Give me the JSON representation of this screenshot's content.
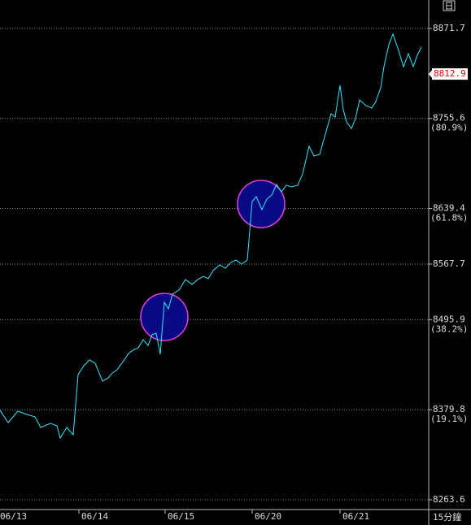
{
  "chart_data": {
    "type": "line",
    "interval_label": "15分鐘",
    "corner_label": "日",
    "xlim": [
      0,
      527
    ],
    "ylim": [
      8251.0,
      8908.4
    ],
    "xticks": [
      {
        "value": -3,
        "label": "06/13"
      },
      {
        "value": 97,
        "label": "06/14"
      },
      {
        "value": 203,
        "label": "06/15"
      },
      {
        "value": 310,
        "label": "06/20"
      },
      {
        "value": 418,
        "label": "06/21"
      }
    ],
    "yticks": [
      8871.7,
      8755.6,
      8639.4,
      8567.7,
      8495.9,
      8379.8,
      8263.6
    ],
    "fib_levels": [
      {
        "value": 8755.6,
        "label": "(80.9%)"
      },
      {
        "value": 8639.4,
        "label": "(61.8%)"
      },
      {
        "value": 8495.9,
        "label": "(38.2%)"
      },
      {
        "value": 8379.8,
        "label": "(19.1%)"
      }
    ],
    "last_price": 8812.9,
    "grid": true,
    "series": [
      {
        "color": "#33e6ff",
        "x": [
          0,
          10,
          22,
          33,
          43,
          50,
          62,
          70,
          74,
          82,
          90,
          96,
          103,
          110,
          117,
          126,
          133,
          138,
          144,
          152,
          158,
          165,
          170,
          176,
          182,
          187,
          192,
          197,
          202,
          207,
          212,
          220,
          228,
          236,
          243,
          250,
          256,
          262,
          270,
          277,
          284,
          290,
          297,
          304,
          310,
          315,
          322,
          328,
          334,
          340,
          346,
          352,
          358,
          366,
          372,
          380,
          386,
          393,
          400,
          407,
          412,
          418,
          422,
          426,
          432,
          437,
          442,
          450,
          457,
          462,
          468,
          472,
          478,
          483,
          490,
          496,
          502,
          508,
          513,
          518
        ],
        "values": [
          8379.0,
          8363.2,
          8377.9,
          8373.7,
          8370.6,
          8356.9,
          8362.2,
          8359.0,
          8343.3,
          8356.9,
          8347.5,
          8425.1,
          8436.6,
          8444.0,
          8439.8,
          8416.7,
          8420.9,
          8427.2,
          8431.4,
          8442.9,
          8452.3,
          8457.6,
          8459.7,
          8470.2,
          8462.8,
          8476.5,
          8478.5,
          8451.3,
          8518.4,
          8510.0,
          8528.9,
          8534.1,
          8547.7,
          8541.5,
          8547.7,
          8551.9,
          8548.8,
          8559.3,
          8566.6,
          8562.4,
          8569.8,
          8572.9,
          8567.7,
          8572.9,
          8648.4,
          8654.7,
          8637.9,
          8651.5,
          8656.8,
          8670.4,
          8661.0,
          8669.4,
          8667.3,
          8669.4,
          8684.0,
          8719.7,
          8707.1,
          8709.2,
          8735.4,
          8761.6,
          8757.4,
          8798.3,
          8766.9,
          8751.1,
          8742.7,
          8755.3,
          8779.4,
          8772.1,
          8769.0,
          8777.3,
          8795.2,
          8822.4,
          8850.7,
          8864.4,
          8843.4,
          8822.4,
          8839.2,
          8822.4,
          8837.1,
          8847.6
        ]
      }
    ],
    "markers": [
      {
        "x": 202,
        "y": 8499.5,
        "color": "#0a0a8a",
        "stroke": "#e040e0"
      },
      {
        "x": 321,
        "y": 8645.2,
        "color": "#0a0a8a",
        "stroke": "#e040e0"
      }
    ]
  }
}
